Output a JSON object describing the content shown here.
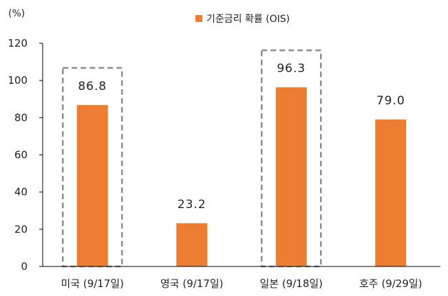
{
  "chart_data": {
    "type": "bar",
    "unit_label": "(%)",
    "categories": [
      "미국 (9/17일)",
      "영국 (9/17일)",
      "일본 (9/18일)",
      "호주 (9/29일)"
    ],
    "series": [
      {
        "name": "기준금리 확률 (OIS)",
        "values": [
          86.8,
          23.2,
          96.3,
          79.0
        ],
        "color": "#ED7D31"
      }
    ],
    "data_labels": [
      "86.8",
      "23.2",
      "96.3",
      "79.0"
    ],
    "highlighted_categories": [
      0,
      2
    ],
    "highlight_box_color": "#8c8c8c",
    "yticks": [
      "0",
      "20",
      "40",
      "60",
      "80",
      "100",
      "120"
    ],
    "ylim": [
      0,
      120
    ],
    "grid": false,
    "legend_position": "top-center",
    "axis_color": "#000000"
  }
}
